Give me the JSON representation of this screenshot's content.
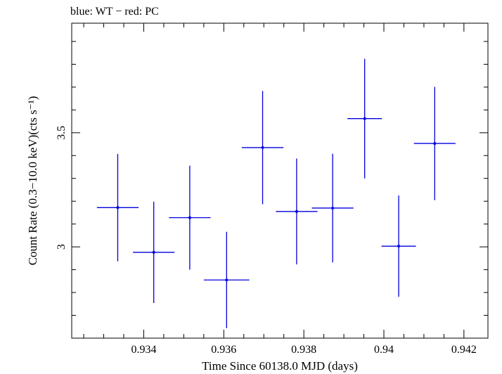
{
  "chart_data": {
    "type": "scatter",
    "title": "blue: WT − red: PC",
    "xlabel": "Time Since 60138.0 MJD (days)",
    "ylabel": "Count Rate (0.3−10.0 keV)(cts s⁻¹)",
    "xlim": [
      0.9322,
      0.9426
    ],
    "ylim": [
      2.6,
      3.98
    ],
    "x_ticks": [
      0.934,
      0.936,
      0.938,
      0.94,
      0.942
    ],
    "x_tick_labels": [
      "0.934",
      "0.936",
      "0.938",
      "0.94",
      "0.942"
    ],
    "y_ticks": [
      3,
      3.5
    ],
    "y_tick_labels": [
      "3",
      "3.5"
    ],
    "grid": false,
    "colors": {
      "WT": "#0000dd"
    },
    "series": [
      {
        "name": "WT",
        "points": [
          {
            "x": 0.93335,
            "y": 3.172,
            "xerr": 0.00052,
            "yerr_low": 0.235,
            "yerr_high": 0.235
          },
          {
            "x": 0.93425,
            "y": 2.976,
            "xerr": 0.00052,
            "yerr_low": 0.222,
            "yerr_high": 0.222
          },
          {
            "x": 0.93515,
            "y": 3.128,
            "xerr": 0.00052,
            "yerr_low": 0.228,
            "yerr_high": 0.228
          },
          {
            "x": 0.93607,
            "y": 2.855,
            "xerr": 0.00057,
            "yerr_low": 0.211,
            "yerr_high": 0.211
          },
          {
            "x": 0.93697,
            "y": 3.435,
            "xerr": 0.00052,
            "yerr_low": 0.248,
            "yerr_high": 0.248
          },
          {
            "x": 0.93782,
            "y": 3.155,
            "xerr": 0.00052,
            "yerr_low": 0.232,
            "yerr_high": 0.232
          },
          {
            "x": 0.93872,
            "y": 3.17,
            "xerr": 0.00052,
            "yerr_low": 0.238,
            "yerr_high": 0.238
          },
          {
            "x": 0.93952,
            "y": 3.562,
            "xerr": 0.00043,
            "yerr_low": 0.262,
            "yerr_high": 0.262
          },
          {
            "x": 0.94037,
            "y": 3.003,
            "xerr": 0.00043,
            "yerr_low": 0.222,
            "yerr_high": 0.222
          },
          {
            "x": 0.94127,
            "y": 3.453,
            "xerr": 0.00052,
            "yerr_low": 0.248,
            "yerr_high": 0.248
          }
        ]
      }
    ]
  }
}
